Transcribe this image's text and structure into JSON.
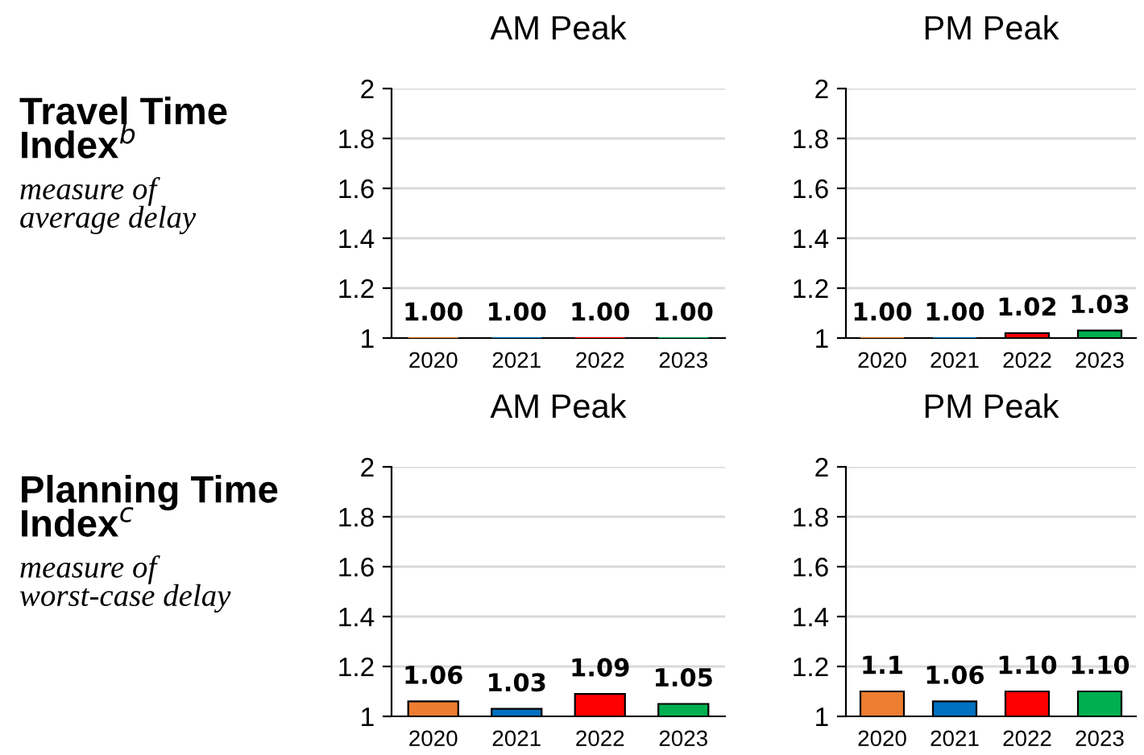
{
  "chart_data": [
    {
      "type": "bar",
      "title": "AM Peak",
      "categories": [
        "2020",
        "2021",
        "2022",
        "2023"
      ],
      "values": [
        1.0,
        1.0,
        1.0,
        1.0
      ],
      "colors": [
        "#ed7d31",
        "#0070c0",
        "#ff0000",
        "#00b050"
      ],
      "value_labels": [
        "1.00",
        "1.00",
        "1.00",
        "1.00"
      ],
      "ylim": [
        1,
        2
      ],
      "yticks": [
        1,
        1.2,
        1.4,
        1.6,
        1.8,
        2
      ],
      "grid": "y",
      "annotations": [
        "Travel Time\nIndex$^{b}$",
        "measure of\naverage delay"
      ]
    },
    {
      "type": "bar",
      "title": "PM Peak",
      "categories": [
        "2020",
        "2021",
        "2022",
        "2023"
      ],
      "values": [
        1.0,
        1.0,
        1.02,
        1.03
      ],
      "colors": [
        "#ed7d31",
        "#0070c0",
        "#ff0000",
        "#00b050"
      ],
      "value_labels": [
        "1.00",
        "1.00",
        "1.02",
        "1.03"
      ],
      "ylim": [
        1,
        2
      ],
      "yticks": [
        1,
        1.2,
        1.4,
        1.6,
        1.8,
        2
      ],
      "grid": "y"
    },
    {
      "type": "bar",
      "title": "AM Peak",
      "categories": [
        "2020",
        "2021",
        "2022",
        "2023"
      ],
      "values": [
        1.06,
        1.03,
        1.09,
        1.05
      ],
      "colors": [
        "#ed7d31",
        "#0070c0",
        "#ff0000",
        "#00b050"
      ],
      "value_labels": [
        "1.06",
        "1.03",
        "1.09",
        "1.05"
      ],
      "ylim": [
        1,
        2
      ],
      "yticks": [
        1,
        1.2,
        1.4,
        1.6,
        1.8,
        2
      ],
      "grid": "y",
      "annotations": [
        "Planning Time\nIndex$^{c}$",
        "measure of\nworst-case delay"
      ]
    },
    {
      "type": "bar",
      "title": "PM Peak",
      "categories": [
        "2020",
        "2021",
        "2022",
        "2023"
      ],
      "values": [
        1.1,
        1.06,
        1.1,
        1.1
      ],
      "colors": [
        "#ed7d31",
        "#0070c0",
        "#ff0000",
        "#00b050"
      ],
      "value_labels": [
        "1.1",
        "1.06",
        "1.10",
        "1.10"
      ],
      "ylim": [
        1,
        2
      ],
      "yticks": [
        1,
        1.2,
        1.4,
        1.6,
        1.8,
        2
      ],
      "grid": "y"
    }
  ]
}
